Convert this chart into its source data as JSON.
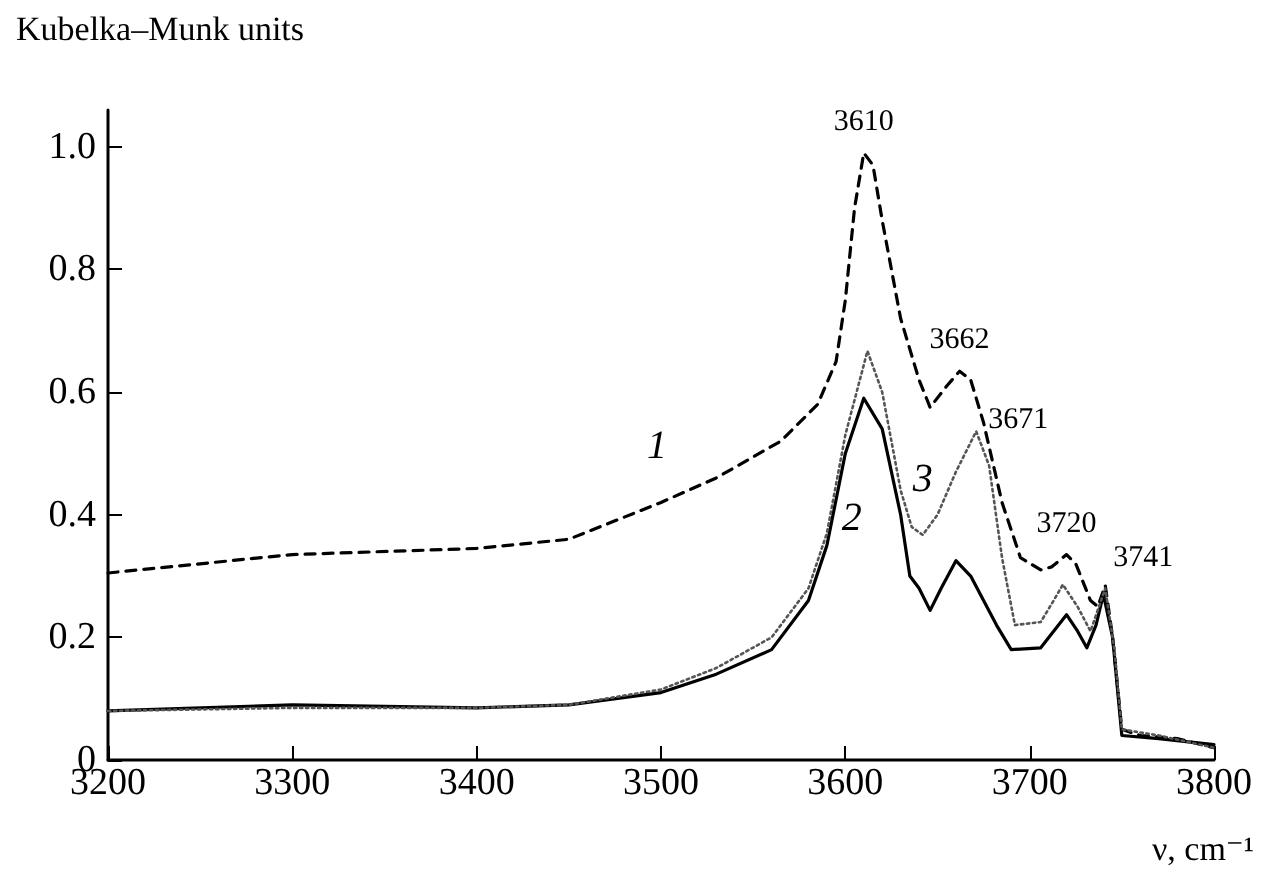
{
  "chart_data": {
    "type": "line",
    "xlabel": "ν, cm⁻¹",
    "ylabel": "Kubelka–Munk units",
    "xlim": [
      3200,
      3800
    ],
    "ylim": [
      0,
      1.06
    ],
    "xticks": [
      3200,
      3300,
      3400,
      3500,
      3600,
      3700,
      3800
    ],
    "yticks": [
      0,
      0.2,
      0.4,
      0.6,
      0.8,
      {
        "value": 1,
        "label": "1.0"
      }
    ],
    "grid": false,
    "legend": false,
    "series": [
      {
        "name": "1",
        "color": "#000000",
        "line_style": "dashed",
        "x": [
          3200,
          3300,
          3400,
          3450,
          3500,
          3530,
          3565,
          3585,
          3595,
          3600,
          3605,
          3610,
          3615,
          3620,
          3630,
          3640,
          3646,
          3655,
          3662,
          3668,
          3675,
          3685,
          3695,
          3706,
          3712,
          3720,
          3725,
          3733,
          3737,
          3741,
          3745,
          3750,
          3760,
          3780,
          3800
        ],
        "values": [
          0.305,
          0.335,
          0.345,
          0.36,
          0.42,
          0.46,
          0.52,
          0.58,
          0.65,
          0.75,
          0.9,
          0.99,
          0.97,
          0.88,
          0.72,
          0.62,
          0.575,
          0.61,
          0.634,
          0.62,
          0.55,
          0.42,
          0.33,
          0.31,
          0.315,
          0.335,
          0.32,
          0.26,
          0.25,
          0.285,
          0.2,
          0.05,
          0.04,
          0.035,
          0.02
        ]
      },
      {
        "name": "2",
        "color": "#000000",
        "line_style": "solid",
        "x": [
          3200,
          3300,
          3400,
          3450,
          3500,
          3530,
          3560,
          3580,
          3590,
          3600,
          3610,
          3620,
          3630,
          3635,
          3640,
          3646,
          3652,
          3660,
          3668,
          3675,
          3682,
          3690,
          3706,
          3713,
          3720,
          3726,
          3731,
          3736,
          3740,
          3745,
          3750,
          3770,
          3800
        ],
        "values": [
          0.08,
          0.09,
          0.085,
          0.09,
          0.11,
          0.14,
          0.18,
          0.26,
          0.35,
          0.5,
          0.59,
          0.54,
          0.4,
          0.3,
          0.28,
          0.244,
          0.28,
          0.325,
          0.3,
          0.26,
          0.22,
          0.18,
          0.183,
          0.21,
          0.237,
          0.21,
          0.183,
          0.22,
          0.27,
          0.2,
          0.04,
          0.035,
          0.025
        ]
      },
      {
        "name": "3",
        "color": "#555555",
        "line_style": "dotted",
        "x": [
          3200,
          3300,
          3400,
          3450,
          3500,
          3530,
          3560,
          3580,
          3590,
          3600,
          3612,
          3620,
          3630,
          3636,
          3642,
          3650,
          3660,
          3671,
          3678,
          3685,
          3692,
          3706,
          3713,
          3718,
          3726,
          3733,
          3741,
          3746,
          3750,
          3770,
          3800
        ],
        "values": [
          0.08,
          0.085,
          0.085,
          0.09,
          0.115,
          0.15,
          0.2,
          0.28,
          0.37,
          0.53,
          0.667,
          0.6,
          0.44,
          0.38,
          0.367,
          0.4,
          0.47,
          0.536,
          0.48,
          0.33,
          0.22,
          0.225,
          0.26,
          0.286,
          0.25,
          0.21,
          0.28,
          0.18,
          0.05,
          0.04,
          0.02
        ]
      }
    ],
    "annotations": [
      {
        "text": "3610",
        "x": 3610,
        "y": 0.99
      },
      {
        "text": "3662",
        "x": 3662,
        "y": 0.634
      },
      {
        "text": "3671",
        "x": 3671,
        "y": 0.536
      },
      {
        "text": "3720",
        "x": 3720,
        "y": 0.335
      },
      {
        "text": "3741",
        "x": 3741,
        "y": 0.285
      }
    ]
  }
}
